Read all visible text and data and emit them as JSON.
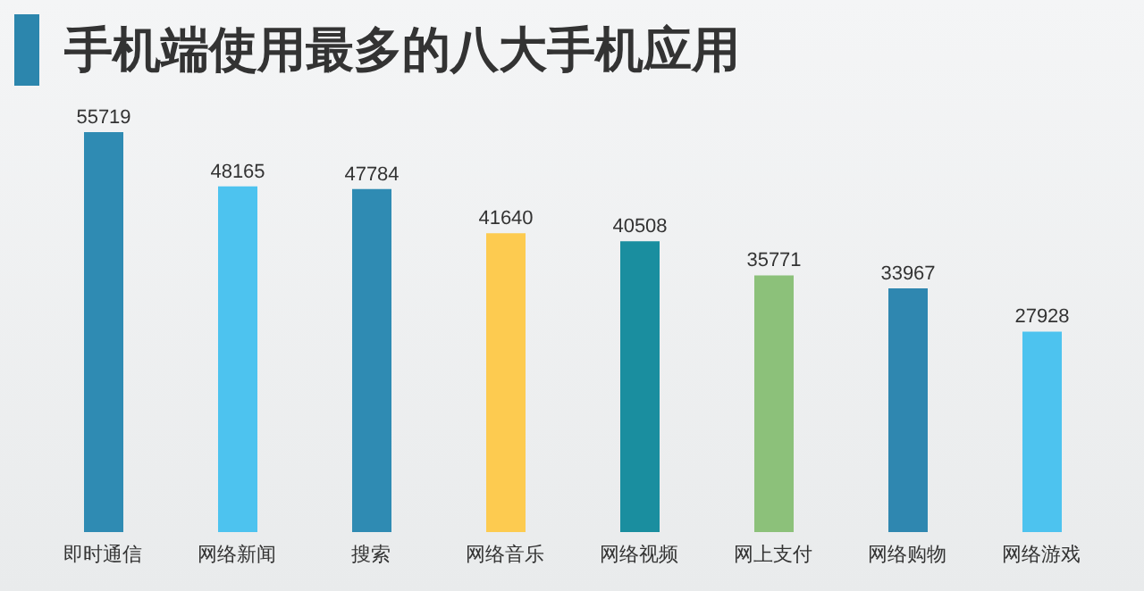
{
  "chart_data": {
    "type": "bar",
    "title": "手机端使用最多的八大手机应用",
    "categories": [
      "即时通信",
      "网络新闻",
      "搜索",
      "网络音乐",
      "网络视频",
      "网上支付",
      "网络购物",
      "网络游戏"
    ],
    "values": [
      55719,
      48165,
      47784,
      41640,
      40508,
      35771,
      33967,
      27928
    ],
    "colors": [
      "#2f8bb3",
      "#4dc3ef",
      "#2f8bb3",
      "#fdcb50",
      "#1a8e9f",
      "#8cc17a",
      "#2f87b0",
      "#4dc3ef"
    ],
    "data_labels": true
  }
}
